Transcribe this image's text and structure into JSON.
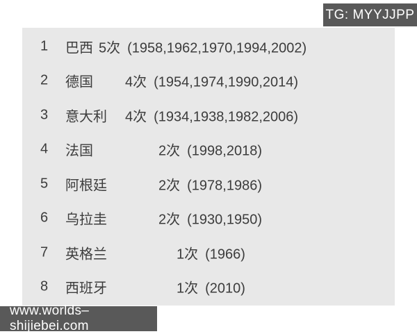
{
  "badges": {
    "telegram": "TG: MYYJJPP",
    "website": "www.worlds–shijiebei.com"
  },
  "colors": {
    "panel_bg": "#e8e8e8",
    "badge_bg": "#595959",
    "badge_text": "#ffffff",
    "row_text": "#3c3c3c",
    "page_bg": "#ffffff"
  },
  "table": {
    "description": "FIFA World Cup titles by country",
    "rows": [
      {
        "rank": "1",
        "country": "巴西",
        "count": "5次",
        "years": "(1958,1962,1970,1994,2002)"
      },
      {
        "rank": "2",
        "country": "德国",
        "count": "4次",
        "years": "(1954,1974,1990,2014)"
      },
      {
        "rank": "3",
        "country": "意大利",
        "count": "4次",
        "years": "(1934,1938,1982,2006)"
      },
      {
        "rank": "4",
        "country": "法国",
        "count": "2次",
        "years": "(1998,2018)"
      },
      {
        "rank": "5",
        "country": "阿根廷",
        "count": "2次",
        "years": "(1978,1986)"
      },
      {
        "rank": "6",
        "country": "乌拉圭",
        "count": "2次",
        "years": "(1930,1950)"
      },
      {
        "rank": "7",
        "country": "英格兰",
        "count": "1次",
        "years": "(1966)"
      },
      {
        "rank": "8",
        "country": "西班牙",
        "count": "1次",
        "years": "(2010)"
      }
    ]
  }
}
